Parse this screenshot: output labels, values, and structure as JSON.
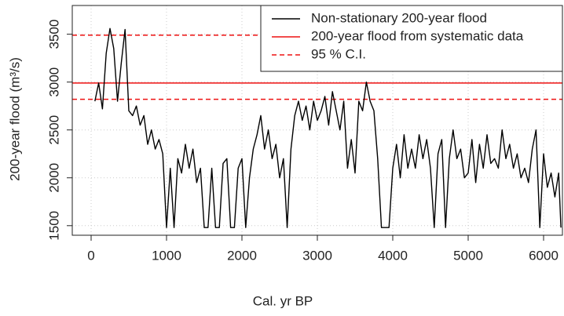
{
  "chart_data": {
    "type": "line",
    "xlabel": "Cal. yr BP",
    "ylabel": "200-year flood (m³/s)",
    "xlim": [
      -250,
      6250
    ],
    "ylim": [
      1400,
      3800
    ],
    "xticks": [
      0,
      1000,
      2000,
      3000,
      4000,
      5000,
      6000
    ],
    "yticks": [
      1500,
      2000,
      2500,
      3000,
      3500
    ],
    "grid": true,
    "legend": "top-right",
    "x": [
      50,
      100,
      150,
      200,
      250,
      300,
      350,
      400,
      450,
      500,
      550,
      600,
      650,
      700,
      750,
      800,
      850,
      900,
      950,
      1000,
      1050,
      1100,
      1150,
      1200,
      1250,
      1300,
      1350,
      1400,
      1450,
      1500,
      1550,
      1600,
      1650,
      1700,
      1750,
      1800,
      1850,
      1900,
      1950,
      2000,
      2050,
      2100,
      2150,
      2200,
      2250,
      2300,
      2350,
      2400,
      2450,
      2500,
      2550,
      2600,
      2650,
      2700,
      2750,
      2800,
      2850,
      2900,
      2950,
      3000,
      3050,
      3100,
      3150,
      3200,
      3250,
      3300,
      3350,
      3400,
      3450,
      3500,
      3550,
      3600,
      3650,
      3700,
      3750,
      3800,
      3850,
      3900,
      3950,
      4000,
      4050,
      4100,
      4150,
      4200,
      4250,
      4300,
      4350,
      4400,
      4450,
      4500,
      4550,
      4600,
      4650,
      4700,
      4750,
      4800,
      4850,
      4900,
      4950,
      5000,
      5050,
      5100,
      5150,
      5200,
      5250,
      5300,
      5350,
      5400,
      5450,
      5500,
      5550,
      5600,
      5650,
      5700,
      5750,
      5800,
      5850,
      5900,
      5950,
      6000,
      6050,
      6100,
      6150,
      6200,
      6230
    ],
    "series": [
      {
        "name": "Non-stationary 200-year flood",
        "color": "#000000",
        "values": [
          2800,
          2990,
          2720,
          3300,
          3560,
          3350,
          2800,
          3200,
          3550,
          2700,
          2650,
          2750,
          2550,
          2650,
          2350,
          2500,
          2300,
          2400,
          2250,
          1480,
          2100,
          1480,
          2200,
          2050,
          2350,
          2100,
          2300,
          1950,
          2100,
          1480,
          1480,
          2100,
          1480,
          1480,
          2150,
          2200,
          1480,
          1480,
          2100,
          2200,
          1480,
          2000,
          2300,
          2450,
          2650,
          2300,
          2500,
          2200,
          2350,
          2000,
          2200,
          1480,
          2300,
          2650,
          2800,
          2600,
          2750,
          2500,
          2800,
          2600,
          2700,
          2850,
          2550,
          2900,
          2700,
          2500,
          2800,
          2100,
          2400,
          2050,
          2800,
          2700,
          3000,
          2800,
          2700,
          2200,
          1480,
          1480,
          1480,
          2100,
          2350,
          2000,
          2450,
          2100,
          2300,
          2100,
          2450,
          2200,
          2400,
          2100,
          1480,
          2250,
          2400,
          1480,
          2200,
          2500,
          2200,
          2300,
          2000,
          2050,
          2400,
          1950,
          2350,
          2100,
          2450,
          2150,
          2200,
          2100,
          2500,
          2200,
          2350,
          2100,
          2250,
          2000,
          2100,
          1950,
          2300,
          2500,
          1480,
          2250,
          1900,
          2050,
          1800,
          2050,
          1480
        ]
      }
    ],
    "reference_lines": [
      {
        "name": "200-year flood from systematic data",
        "color": "#ee1111",
        "style": "solid",
        "values": [
          2990
        ]
      },
      {
        "name": "95 % C.I.",
        "color": "#ee1111",
        "style": "dashed",
        "values": [
          3490,
          2820
        ]
      }
    ]
  }
}
